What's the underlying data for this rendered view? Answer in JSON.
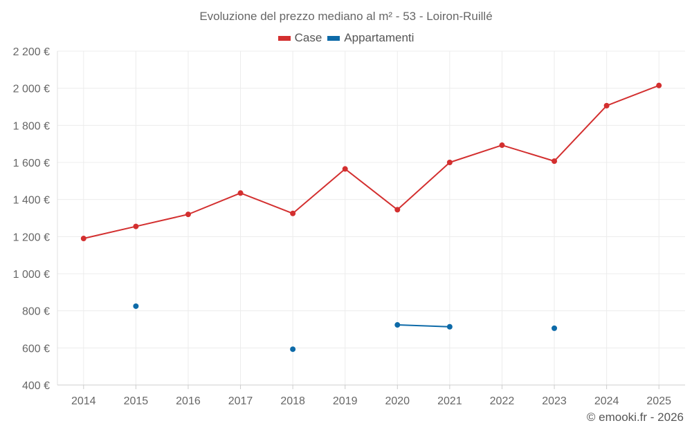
{
  "chart_data": {
    "type": "line",
    "title": "Evoluzione del prezzo mediano al m² - 53 - Loiron-Ruillé",
    "categories": [
      "2014",
      "2015",
      "2016",
      "2017",
      "2018",
      "2019",
      "2020",
      "2021",
      "2022",
      "2023",
      "2024",
      "2025"
    ],
    "series": [
      {
        "name": "Case",
        "color": "#d32f2f",
        "values": [
          1190,
          1255,
          1320,
          1435,
          1325,
          1565,
          1345,
          1600,
          1693,
          1607,
          1906,
          2015
        ]
      },
      {
        "name": "Appartamenti",
        "color": "#0d6aa8",
        "values": [
          null,
          825,
          null,
          null,
          593,
          null,
          724,
          714,
          null,
          706,
          null,
          null
        ]
      }
    ],
    "ylim": [
      400,
      2200
    ],
    "yticks": [
      400,
      600,
      800,
      1000,
      1200,
      1400,
      1600,
      1800,
      2000,
      2200
    ],
    "ytick_labels": [
      "400 €",
      "600 €",
      "800 €",
      "1 000 €",
      "1 200 €",
      "1 400 €",
      "1 600 €",
      "1 800 €",
      "2 000 €",
      "2 200 €"
    ],
    "grid": true,
    "legend_position": "top-center"
  },
  "credit": "© emooki.fr - 2026"
}
